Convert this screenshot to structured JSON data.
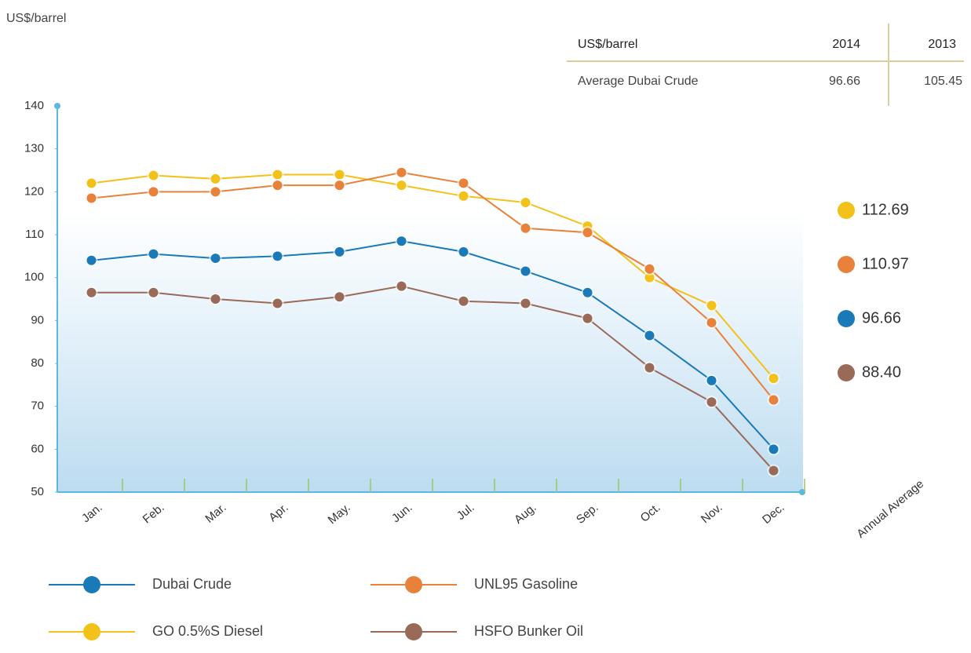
{
  "chart_data": {
    "type": "line",
    "y_label": "US$/barrel",
    "categories": [
      "Jan.",
      "Feb.",
      "Mar.",
      "Apr.",
      "May.",
      "Jun.",
      "Jul.",
      "Aug.",
      "Sep.",
      "Oct.",
      "Nov.",
      "Dec."
    ],
    "extra_category": "Annual Average",
    "ylim": [
      50,
      140
    ],
    "yticks": [
      50,
      60,
      70,
      80,
      90,
      100,
      110,
      120,
      130,
      140
    ],
    "series": [
      {
        "name": "GO 0.5%S Diesel",
        "color": "#f2c21a",
        "values": [
          122,
          123.8,
          123,
          124,
          124,
          121.5,
          119,
          117.5,
          112,
          100,
          93.5,
          76.5
        ]
      },
      {
        "name": "UNL95 Gasoline",
        "color": "#e8823a",
        "values": [
          118.5,
          120,
          120,
          121.5,
          121.5,
          124.5,
          122,
          111.5,
          110.5,
          102,
          89.5,
          71.5
        ]
      },
      {
        "name": "Dubai Crude",
        "color": "#1a7ab8",
        "values": [
          104,
          105.5,
          104.5,
          105,
          106,
          108.5,
          106,
          101.5,
          96.5,
          86.5,
          76,
          60
        ]
      },
      {
        "name": "HSFO Bunker Oil",
        "color": "#9a6a58",
        "values": [
          96.5,
          96.5,
          95,
          94,
          95.5,
          98,
          94.5,
          94,
          90.5,
          79,
          71,
          55
        ]
      }
    ],
    "annual_averages": {
      "values": [
        112.69,
        110.97,
        96.66,
        88.4
      ],
      "value_labels": [
        "112.69",
        "110.97",
        "96.66",
        "88.40"
      ]
    },
    "legend_order": [
      2,
      1,
      0,
      3
    ]
  },
  "table": {
    "header": [
      "US$/barrel",
      "2014",
      "2013"
    ],
    "rows": [
      [
        "Average Dubai Crude",
        "96.66",
        "105.45"
      ]
    ]
  }
}
